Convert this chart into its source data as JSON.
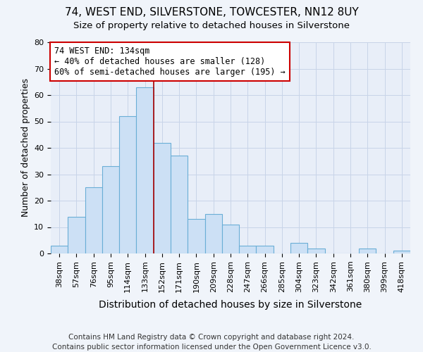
{
  "title": "74, WEST END, SILVERSTONE, TOWCESTER, NN12 8UY",
  "subtitle": "Size of property relative to detached houses in Silverstone",
  "xlabel": "Distribution of detached houses by size in Silverstone",
  "ylabel": "Number of detached properties",
  "bin_labels": [
    "38sqm",
    "57sqm",
    "76sqm",
    "95sqm",
    "114sqm",
    "133sqm",
    "152sqm",
    "171sqm",
    "190sqm",
    "209sqm",
    "228sqm",
    "247sqm",
    "266sqm",
    "285sqm",
    "304sqm",
    "323sqm",
    "342sqm",
    "361sqm",
    "380sqm",
    "399sqm",
    "418sqm"
  ],
  "bar_values": [
    3,
    14,
    25,
    33,
    52,
    63,
    42,
    37,
    13,
    15,
    11,
    3,
    3,
    0,
    4,
    2,
    0,
    0,
    2,
    0,
    1
  ],
  "bar_color": "#cce0f5",
  "bar_edge_color": "#6aaed6",
  "ylim": [
    0,
    80
  ],
  "yticks": [
    0,
    10,
    20,
    30,
    40,
    50,
    60,
    70,
    80
  ],
  "property_line_bin_index": 5,
  "property_line_color": "#aa0000",
  "annotation_text": "74 WEST END: 134sqm\n← 40% of detached houses are smaller (128)\n60% of semi-detached houses are larger (195) →",
  "annotation_box_color": "#ffffff",
  "annotation_box_edge_color": "#cc0000",
  "footer_line1": "Contains HM Land Registry data © Crown copyright and database right 2024.",
  "footer_line2": "Contains public sector information licensed under the Open Government Licence v3.0.",
  "background_color": "#f0f4fa",
  "plot_bg_color": "#e8eef8",
  "grid_color": "#c8d4e8",
  "title_fontsize": 11,
  "subtitle_fontsize": 9.5,
  "xlabel_fontsize": 10,
  "ylabel_fontsize": 9,
  "tick_fontsize": 8,
  "footer_fontsize": 7.5,
  "annotation_fontsize": 8.5
}
